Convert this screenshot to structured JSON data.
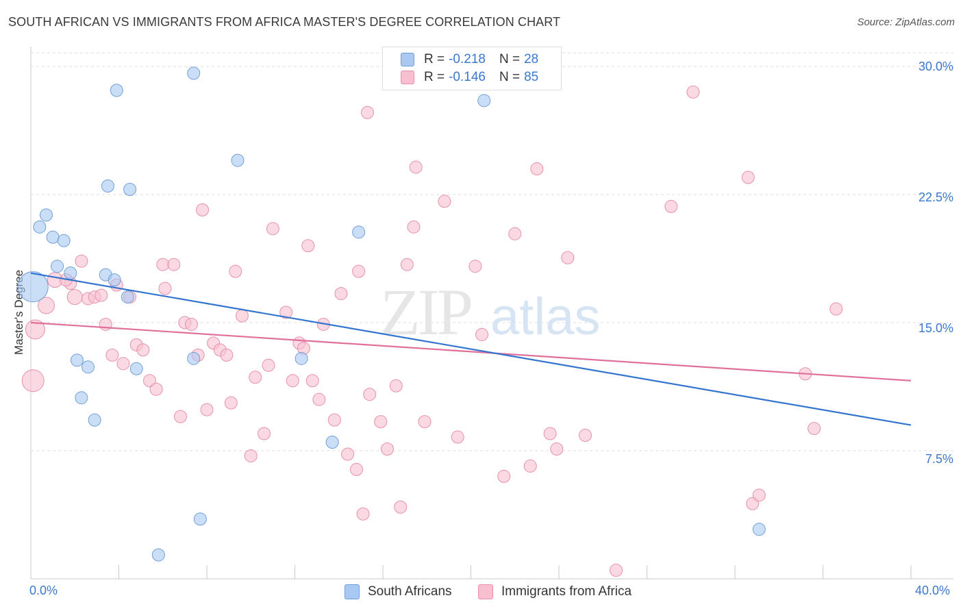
{
  "title": "SOUTH AFRICAN VS IMMIGRANTS FROM AFRICA MASTER'S DEGREE CORRELATION CHART",
  "source": "Source: ZipAtlas.com",
  "watermark": {
    "zip": "ZIP",
    "atlas": "atlas"
  },
  "legend": {
    "r_label": "R =",
    "n_label": "N =",
    "rows": [
      {
        "r": "-0.218",
        "n": "28",
        "color": "#a9c8f2",
        "stroke": "#6f9fd8"
      },
      {
        "r": "-0.146",
        "n": "85",
        "color": "#f8bfd0",
        "stroke": "#e890ab"
      }
    ]
  },
  "bottom_legend": [
    "South Africans",
    "Immigrants from Africa"
  ],
  "colors": {
    "blue_line": "#3374d0",
    "pink_line": "#e0709a",
    "tick_text": "#3a78d0",
    "grid": "#dcdcdc"
  },
  "chart_data": {
    "type": "scatter",
    "title": "SOUTH AFRICAN VS IMMIGRANTS FROM AFRICA MASTER'S DEGREE CORRELATION CHART",
    "xlabel": "",
    "ylabel": "Master's Degree",
    "xlim": [
      0,
      40
    ],
    "ylim": [
      0,
      30.8
    ],
    "x_tick_labels": [
      "0.0%",
      "40.0%"
    ],
    "y_ticks": [
      7.5,
      15.0,
      22.5,
      30.0
    ],
    "y_tick_labels": [
      "7.5%",
      "15.0%",
      "22.5%",
      "30.0%"
    ],
    "grid": "horizontal dashed",
    "legend_position": "top-center",
    "series": [
      {
        "name": "South Africans",
        "r": -0.218,
        "n": 28,
        "trend": [
          [
            0,
            17.9
          ],
          [
            40,
            9.0
          ]
        ],
        "points": [
          [
            0.1,
            17.1,
            22
          ],
          [
            0.7,
            21.3,
            9
          ],
          [
            0.4,
            20.6,
            9
          ],
          [
            1.0,
            20.0,
            9
          ],
          [
            1.5,
            19.8,
            9
          ],
          [
            1.2,
            18.3,
            9
          ],
          [
            1.8,
            17.9,
            9
          ],
          [
            3.5,
            23.0,
            9
          ],
          [
            3.9,
            28.6,
            9
          ],
          [
            4.5,
            22.8,
            9
          ],
          [
            7.4,
            29.6,
            9
          ],
          [
            9.4,
            24.5,
            9
          ],
          [
            3.4,
            17.8,
            9
          ],
          [
            3.8,
            17.5,
            9
          ],
          [
            4.4,
            16.5,
            9
          ],
          [
            2.1,
            12.8,
            9
          ],
          [
            2.6,
            12.4,
            9
          ],
          [
            4.8,
            12.3,
            9
          ],
          [
            7.4,
            12.9,
            9
          ],
          [
            12.3,
            12.9,
            9
          ],
          [
            2.3,
            10.6,
            9
          ],
          [
            2.9,
            9.3,
            9
          ],
          [
            13.7,
            8.0,
            9
          ],
          [
            7.7,
            3.5,
            9
          ],
          [
            5.8,
            1.4,
            9
          ],
          [
            14.9,
            20.3,
            9
          ],
          [
            20.6,
            28.0,
            9
          ],
          [
            33.1,
            2.9,
            9
          ]
        ]
      },
      {
        "name": "Immigrants from Africa",
        "r": -0.146,
        "n": 85,
        "trend": [
          [
            0,
            15.0
          ],
          [
            40,
            11.6
          ]
        ],
        "points": [
          [
            0.2,
            14.6,
            14
          ],
          [
            0.1,
            11.6,
            16
          ],
          [
            0.7,
            16.0,
            12
          ],
          [
            1.1,
            17.5,
            11
          ],
          [
            1.8,
            17.3,
            9
          ],
          [
            1.6,
            17.5,
            9
          ],
          [
            2.0,
            16.5,
            11
          ],
          [
            2.3,
            18.6,
            9
          ],
          [
            2.6,
            16.4,
            9
          ],
          [
            2.9,
            16.5,
            9
          ],
          [
            3.2,
            16.6,
            9
          ],
          [
            3.9,
            17.2,
            9
          ],
          [
            3.4,
            14.9,
            9
          ],
          [
            3.7,
            13.1,
            9
          ],
          [
            4.2,
            12.6,
            9
          ],
          [
            4.5,
            16.5,
            9
          ],
          [
            4.8,
            13.7,
            9
          ],
          [
            5.1,
            13.4,
            9
          ],
          [
            5.4,
            11.6,
            9
          ],
          [
            5.7,
            11.1,
            9
          ],
          [
            6.0,
            18.4,
            9
          ],
          [
            6.1,
            17.0,
            9
          ],
          [
            6.5,
            18.4,
            9
          ],
          [
            6.8,
            9.5,
            9
          ],
          [
            7.0,
            15.0,
            9
          ],
          [
            7.3,
            14.9,
            9
          ],
          [
            7.6,
            13.1,
            9
          ],
          [
            7.8,
            21.6,
            9
          ],
          [
            8.0,
            9.9,
            9
          ],
          [
            8.3,
            13.8,
            9
          ],
          [
            8.6,
            13.4,
            9
          ],
          [
            8.9,
            13.1,
            9
          ],
          [
            9.1,
            10.3,
            9
          ],
          [
            9.3,
            18.0,
            9
          ],
          [
            9.6,
            15.4,
            9
          ],
          [
            10.0,
            7.2,
            9
          ],
          [
            10.2,
            11.8,
            9
          ],
          [
            10.6,
            8.5,
            9
          ],
          [
            10.8,
            12.5,
            9
          ],
          [
            11.0,
            20.5,
            9
          ],
          [
            11.6,
            15.6,
            9
          ],
          [
            11.9,
            11.6,
            9
          ],
          [
            12.2,
            13.8,
            9
          ],
          [
            12.4,
            13.5,
            9
          ],
          [
            12.6,
            19.5,
            9
          ],
          [
            12.8,
            11.6,
            9
          ],
          [
            13.1,
            10.5,
            9
          ],
          [
            13.3,
            14.9,
            9
          ],
          [
            13.8,
            9.3,
            9
          ],
          [
            14.1,
            16.7,
            9
          ],
          [
            14.4,
            7.3,
            9
          ],
          [
            14.8,
            6.4,
            9
          ],
          [
            14.9,
            18.0,
            9
          ],
          [
            15.1,
            3.8,
            9
          ],
          [
            15.3,
            27.3,
            9
          ],
          [
            15.4,
            10.8,
            9
          ],
          [
            15.9,
            9.2,
            9
          ],
          [
            16.2,
            7.6,
            9
          ],
          [
            16.6,
            11.3,
            9
          ],
          [
            16.8,
            4.2,
            9
          ],
          [
            17.1,
            18.4,
            9
          ],
          [
            17.4,
            20.6,
            9
          ],
          [
            17.5,
            24.1,
            9
          ],
          [
            17.9,
            9.2,
            9
          ],
          [
            18.8,
            22.1,
            9
          ],
          [
            19.4,
            8.3,
            9
          ],
          [
            20.2,
            18.3,
            9
          ],
          [
            20.5,
            14.3,
            9
          ],
          [
            21.5,
            6.0,
            9
          ],
          [
            22.0,
            20.2,
            9
          ],
          [
            22.7,
            6.6,
            9
          ],
          [
            23.0,
            24.0,
            9
          ],
          [
            23.6,
            8.5,
            9
          ],
          [
            23.9,
            7.6,
            9
          ],
          [
            24.4,
            18.8,
            9
          ],
          [
            25.2,
            8.4,
            9
          ],
          [
            26.6,
            0.5,
            9
          ],
          [
            29.1,
            21.8,
            9
          ],
          [
            30.1,
            28.5,
            9
          ],
          [
            32.6,
            23.5,
            9
          ],
          [
            32.8,
            4.4,
            9
          ],
          [
            33.1,
            4.9,
            9
          ],
          [
            35.2,
            12.0,
            9
          ],
          [
            35.6,
            8.8,
            9
          ],
          [
            36.6,
            15.8,
            9
          ]
        ]
      }
    ]
  }
}
